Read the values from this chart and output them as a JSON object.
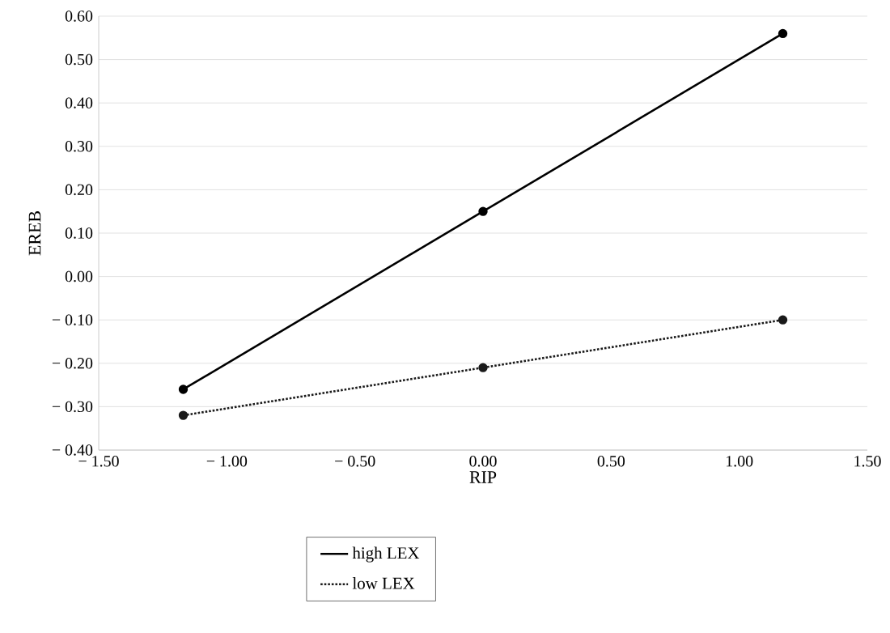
{
  "chart_data": {
    "type": "line",
    "xlabel": "RIP",
    "ylabel": "EREB",
    "x": [
      -1.17,
      0,
      1.17
    ],
    "series": [
      {
        "name": "high LEX",
        "color": "#000000",
        "values": [
          -0.26,
          0.15,
          0.56
        ],
        "line_style": "solid"
      },
      {
        "name": "low LEX",
        "color": "#1a1a1a",
        "values": [
          -0.32,
          -0.21,
          -0.1
        ],
        "line_style": "dotted"
      }
    ],
    "xlim": [
      -1.5,
      1.5
    ],
    "xticks": [
      {
        "value": -1.5,
        "label": "− 1.50"
      },
      {
        "value": -1.0,
        "label": "− 1.00"
      },
      {
        "value": -0.5,
        "label": "− 0.50"
      },
      {
        "value": 0,
        "label": "0.00"
      },
      {
        "value": 0.5,
        "label": "0.50"
      },
      {
        "value": 1.0,
        "label": "1.00"
      },
      {
        "value": 1.5,
        "label": "1.50"
      }
    ],
    "ylim": [
      -0.4,
      0.6
    ],
    "yticks": [
      {
        "value": -0.4,
        "label": "− 0.40"
      },
      {
        "value": -0.3,
        "label": "− 0.30"
      },
      {
        "value": -0.2,
        "label": "− 0.20"
      },
      {
        "value": -0.1,
        "label": "− 0.10"
      },
      {
        "value": 0,
        "label": "0.00"
      },
      {
        "value": 0.1,
        "label": "0.10"
      },
      {
        "value": 0.2,
        "label": "0.20"
      },
      {
        "value": 0.3,
        "label": "0.30"
      },
      {
        "value": 0.4,
        "label": "0.40"
      },
      {
        "value": 0.5,
        "label": "0.50"
      },
      {
        "value": 0.6,
        "label": "0.60"
      }
    ],
    "grid": "y",
    "legend": "bottom",
    "marker": "circle"
  }
}
